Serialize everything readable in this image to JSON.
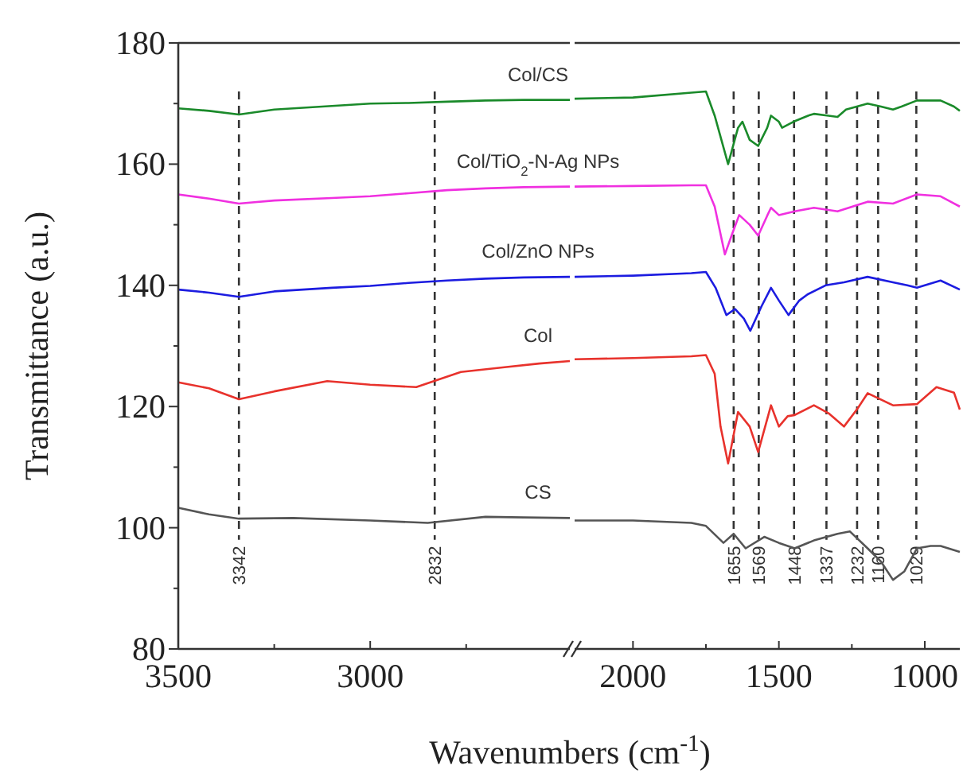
{
  "chart_data": [
    {
      "type": "line",
      "xlabel": "Wavenumbers (cm$^{-1}$)",
      "ylabel": "Transmittance (a.u.)",
      "xlim": [
        3500,
        2480
      ],
      "ylim": [
        80,
        180
      ],
      "xticks": [
        3500,
        {
          "value": 3250,
          "label": null
        },
        3000,
        {
          "value": 2750,
          "label": null
        }
      ],
      "yticks": [
        80,
        {
          "value": 90,
          "label": null
        },
        100,
        {
          "value": 110,
          "label": null
        },
        120,
        {
          "value": 130,
          "label": null
        },
        140,
        {
          "value": 150,
          "label": null
        },
        160,
        {
          "value": 170,
          "label": null
        },
        180
      ],
      "grid": false,
      "marker": "none",
      "line_style": "solid",
      "ref_lines": [
        {
          "axis": "x",
          "value": 3342,
          "label": "3342",
          "line_style": "dashed",
          "color": "#333333"
        },
        {
          "axis": "x",
          "value": 2832,
          "label": "2832",
          "line_style": "dashed",
          "color": "#333333"
        }
      ],
      "series": [
        {
          "name": "Col/CS",
          "color": "#1a8a2a",
          "x": [
            3500,
            3420,
            3342,
            3250,
            3100,
            3000,
            2900,
            2800,
            2700,
            2600,
            2480
          ],
          "values": [
            169.2,
            168.8,
            168.2,
            169,
            169.6,
            170,
            170.1,
            170.3,
            170.5,
            170.6,
            170.6
          ]
        },
        {
          "name": "Col/TiO$_{2}$-N-Ag NPs",
          "color": "#f030e0",
          "x": [
            3500,
            3420,
            3342,
            3250,
            3100,
            3000,
            2900,
            2800,
            2700,
            2600,
            2480
          ],
          "values": [
            155,
            154.3,
            153.5,
            154,
            154.4,
            154.7,
            155.2,
            155.7,
            156,
            156.2,
            156.3
          ]
        },
        {
          "name": "Col/ZnO NPs",
          "color": "#1c1ce0",
          "x": [
            3500,
            3420,
            3342,
            3250,
            3100,
            3000,
            2900,
            2800,
            2700,
            2600,
            2480
          ],
          "values": [
            139.3,
            138.8,
            138.1,
            139,
            139.6,
            139.9,
            140.4,
            140.8,
            141.1,
            141.3,
            141.4
          ]
        },
        {
          "name": "Col",
          "color": "#e8322c",
          "x": [
            3500,
            3420,
            3342,
            3250,
            3112,
            3000,
            2880,
            2764,
            2650,
            2560,
            2480
          ],
          "values": [
            124,
            123,
            121.2,
            122.5,
            124.2,
            123.6,
            123.2,
            125.7,
            126.5,
            127.1,
            127.5
          ]
        },
        {
          "name": "CS",
          "color": "#555555",
          "x": [
            3500,
            3420,
            3342,
            3200,
            3000,
            2850,
            2700,
            2600,
            2480
          ],
          "values": [
            103.3,
            102.2,
            101.5,
            101.6,
            101.2,
            100.8,
            101.8,
            101.7,
            101.6
          ]
        }
      ]
    },
    {
      "type": "line",
      "xlim": [
        2200,
        880
      ],
      "ylim": [
        80,
        180
      ],
      "tick_labels": "x",
      "xticks": [
        2000,
        {
          "value": 1750,
          "label": null
        },
        1500,
        {
          "value": 1250,
          "label": null
        },
        1000
      ],
      "grid": false,
      "marker": "none",
      "line_style": "solid",
      "ref_lines": [
        {
          "axis": "x",
          "value": 1655,
          "label": "1655",
          "line_style": "dashed",
          "color": "#333333"
        },
        {
          "axis": "x",
          "value": 1569,
          "label": "1569",
          "line_style": "dashed",
          "color": "#333333"
        },
        {
          "axis": "x",
          "value": 1448,
          "label": "1448",
          "line_style": "dashed",
          "color": "#333333"
        },
        {
          "axis": "x",
          "value": 1337,
          "label": "1337",
          "line_style": "dashed",
          "color": "#333333"
        },
        {
          "axis": "x",
          "value": 1232,
          "label": "1232",
          "line_style": "dashed",
          "color": "#333333"
        },
        {
          "axis": "x",
          "value": 1160,
          "label": "1160",
          "line_style": "dashed",
          "color": "#333333"
        },
        {
          "axis": "x",
          "value": 1029,
          "label": "1029",
          "line_style": "dashed",
          "color": "#333333"
        }
      ],
      "series": [
        {
          "color": "#1a8a2a",
          "x": [
            2200,
            2000,
            1800,
            1750,
            1720,
            1674,
            1640,
            1625,
            1600,
            1571,
            1540,
            1527,
            1500,
            1489,
            1450,
            1400,
            1380,
            1330,
            1299,
            1270,
            1196,
            1150,
            1109,
            1080,
            1027,
            946,
            900,
            880
          ],
          "values": [
            170.8,
            171,
            171.8,
            172,
            168,
            160,
            166,
            167,
            164,
            163,
            166,
            168,
            167,
            166,
            167,
            168,
            168.3,
            168,
            167.8,
            169,
            170,
            169.5,
            169,
            169.5,
            170.5,
            170.5,
            169.5,
            168.8
          ]
        },
        {
          "color": "#f030e0",
          "x": [
            2200,
            2000,
            1800,
            1750,
            1720,
            1685,
            1660,
            1636,
            1600,
            1571,
            1540,
            1527,
            1500,
            1446,
            1380,
            1299,
            1196,
            1109,
            1027,
            946,
            880
          ],
          "values": [
            156.3,
            156.4,
            156.5,
            156.5,
            153,
            145.1,
            148.5,
            151.6,
            150,
            148.2,
            151.5,
            152.8,
            151.6,
            152.2,
            152.8,
            152.2,
            153.8,
            153.5,
            155,
            154.7,
            153
          ]
        },
        {
          "color": "#1c1ce0",
          "x": [
            2200,
            2000,
            1800,
            1750,
            1717,
            1680,
            1650,
            1620,
            1598,
            1560,
            1527,
            1500,
            1467,
            1430,
            1402,
            1340,
            1277,
            1196,
            1109,
            1060,
            1027,
            946,
            880
          ],
          "values": [
            141.4,
            141.6,
            142,
            142.2,
            139.6,
            135.1,
            136.1,
            134.5,
            132.5,
            136.5,
            139.6,
            137.5,
            135.1,
            137.5,
            138.5,
            140,
            140.5,
            141.4,
            140.5,
            140,
            139.6,
            140.8,
            139.3
          ]
        },
        {
          "color": "#e8322c",
          "x": [
            2200,
            2000,
            1800,
            1750,
            1720,
            1700,
            1674,
            1640,
            1600,
            1571,
            1527,
            1500,
            1470,
            1446,
            1380,
            1330,
            1277,
            1230,
            1196,
            1109,
            1027,
            960,
            900,
            880
          ],
          "values": [
            127.8,
            128,
            128.3,
            128.5,
            125.4,
            116.7,
            110.6,
            119.1,
            116.7,
            112.5,
            120.2,
            116.7,
            118.4,
            118.6,
            120.2,
            118.9,
            116.7,
            119.7,
            122.2,
            120.2,
            120.4,
            123.2,
            122.3,
            119.5
          ]
        },
        {
          "color": "#555555",
          "x": [
            2200,
            2000,
            1800,
            1750,
            1690,
            1655,
            1614,
            1550,
            1500,
            1446,
            1380,
            1299,
            1257,
            1196,
            1150,
            1109,
            1070,
            1027,
            980,
            946,
            880
          ],
          "values": [
            101.2,
            101.2,
            100.8,
            100.3,
            97.5,
            99,
            96.6,
            98.5,
            97.5,
            96.6,
            97.9,
            99,
            99.4,
            96.6,
            94.4,
            91.4,
            92.8,
            96.6,
            97,
            97,
            96
          ]
        }
      ]
    }
  ]
}
